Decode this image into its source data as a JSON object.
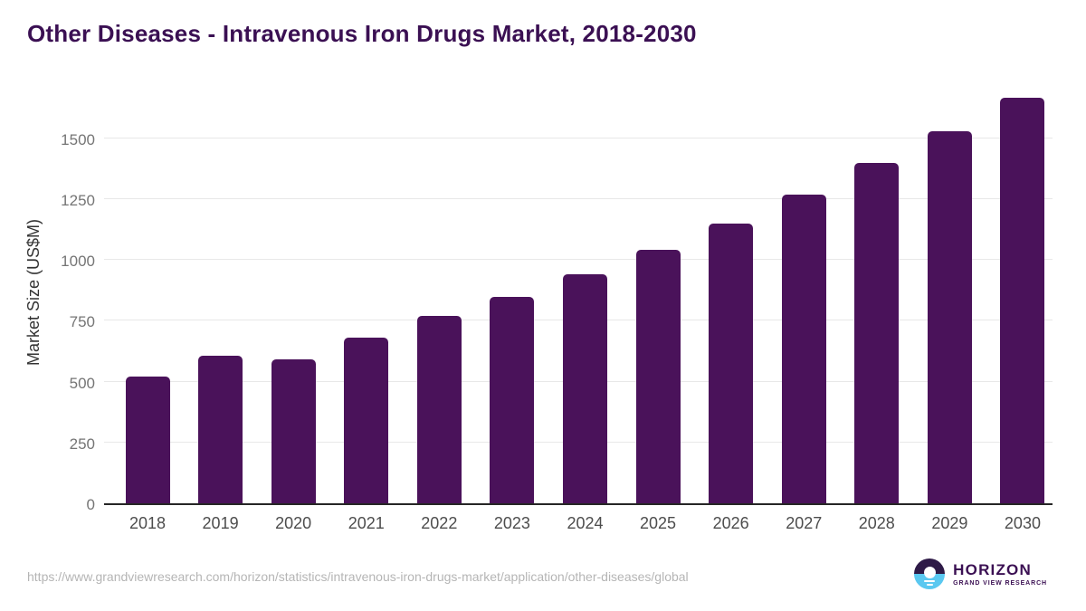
{
  "chart_data": {
    "type": "bar",
    "title": "Other Diseases - Intravenous Iron Drugs Market, 2018-2030",
    "title_color": "#3b1053",
    "categories": [
      "2018",
      "2019",
      "2020",
      "2021",
      "2022",
      "2023",
      "2024",
      "2025",
      "2026",
      "2027",
      "2028",
      "2029",
      "2030"
    ],
    "values": [
      520,
      605,
      590,
      680,
      770,
      850,
      940,
      1040,
      1150,
      1270,
      1400,
      1530,
      1665
    ],
    "xlabel": "",
    "ylabel": "Market Size (US$M)",
    "yticks": [
      0,
      250,
      500,
      750,
      1000,
      1250,
      1500
    ],
    "ylim": [
      0,
      1715
    ],
    "grid": "horizontal",
    "legend": "none",
    "bar_color": "#4a125a",
    "gridline_color": "#e8e8e8",
    "axis_line_color": "#262626",
    "y_tick_label_color": "#757575",
    "x_tick_label_color": "#4d4d4d",
    "axis_title_color": "#333333"
  },
  "footer": {
    "source_url": "https://www.grandviewresearch.com/horizon/statistics/intravenous-iron-drugs-market/application/other-diseases/global",
    "source_url_color": "#b5b5b5",
    "logo": {
      "name": "HORIZON",
      "subtitle": "GRAND VIEW RESEARCH",
      "text_color": "#3b1053",
      "icon_top_color": "#2e1a47",
      "icon_bottom_color": "#5ac8f0"
    }
  }
}
